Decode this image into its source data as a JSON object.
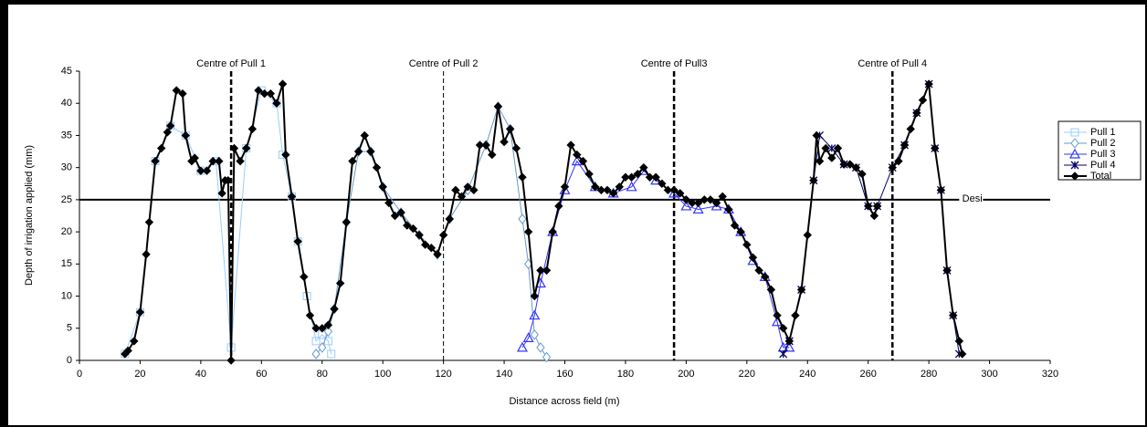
{
  "chart_data": {
    "type": "line",
    "x_label": "Distance across field (m)",
    "y_label": "Depth of irrigation applied (mm)",
    "xlim": [
      0,
      320
    ],
    "xticks": [
      0,
      20,
      40,
      60,
      80,
      100,
      120,
      140,
      160,
      180,
      200,
      220,
      240,
      260,
      280,
      300,
      320
    ],
    "ylim": [
      0,
      45
    ],
    "yticks": [
      0,
      5,
      10,
      15,
      20,
      25,
      30,
      35,
      40,
      45
    ],
    "grid": false,
    "legend": "right",
    "vlines": [
      {
        "x": 50,
        "label": "Centre of Pull 1",
        "style": "thick"
      },
      {
        "x": 120,
        "label": "Centre of Pull 2",
        "style": "thin"
      },
      {
        "x": 196,
        "label": "Centre of Pull3",
        "style": "thick"
      },
      {
        "x": 268,
        "label": "Centre of Pull 4",
        "style": "thick"
      }
    ],
    "hline": {
      "value": 25,
      "label": "Desi"
    },
    "series": [
      {
        "name": "Pull 1",
        "color": "#99ccff",
        "marker": "square",
        "x": [
          15,
          20,
          25,
          30,
          35,
          40,
          45,
          50,
          55,
          60,
          65,
          67,
          70,
          72,
          75,
          78,
          80,
          82,
          83
        ],
        "values": [
          1,
          7.5,
          31,
          36.5,
          35,
          29.5,
          31,
          2,
          33,
          42,
          40,
          32,
          25.5,
          18.5,
          10,
          3,
          4,
          3,
          1
        ]
      },
      {
        "name": "Pull 2",
        "color": "#6699cc",
        "marker": "diamond",
        "x": [
          78,
          80,
          82,
          84,
          88,
          92,
          96,
          100,
          106,
          112,
          118,
          122,
          128,
          134,
          138,
          142,
          146,
          148,
          150,
          152,
          154
        ],
        "values": [
          1,
          2,
          4.5,
          8,
          21.5,
          32.5,
          32.5,
          27,
          23,
          19.5,
          16.5,
          22,
          26.5,
          33.5,
          39.5,
          36,
          22,
          15,
          4,
          2,
          0.5
        ]
      },
      {
        "name": "Pull 3",
        "color": "#3333ff",
        "marker": "triangle",
        "x": [
          146,
          148,
          150,
          152,
          156,
          160,
          164,
          170,
          176,
          182,
          186,
          190,
          196,
          200,
          204,
          210,
          214,
          218,
          222,
          226,
          230,
          232,
          234
        ],
        "values": [
          2,
          3.5,
          7,
          12,
          20,
          26.5,
          31,
          27,
          26,
          27,
          29.5,
          28,
          26,
          24,
          23.5,
          24,
          23.5,
          20,
          15.5,
          13,
          6,
          2,
          2
        ]
      },
      {
        "name": "Pull 4",
        "color": "#000066",
        "marker": "star",
        "x": [
          232,
          234,
          238,
          242,
          244,
          248,
          252,
          256,
          260,
          263,
          268,
          272,
          276,
          280,
          282,
          284,
          286,
          288,
          290
        ],
        "values": [
          1,
          3,
          11,
          28,
          35,
          33,
          30.5,
          30,
          24,
          24,
          30,
          33.5,
          38.5,
          43,
          33,
          26.5,
          14,
          7,
          1
        ]
      },
      {
        "name": "Total",
        "color": "#000000",
        "marker": "dot",
        "x": [
          15,
          16,
          18,
          20,
          22,
          23,
          25,
          27,
          29,
          30,
          32,
          34,
          35,
          37,
          38,
          40,
          42,
          44,
          46,
          47,
          48,
          49,
          50,
          51,
          53,
          55,
          57,
          59,
          61,
          63,
          65,
          67,
          68,
          70,
          72,
          74,
          76,
          78,
          80,
          82,
          84,
          86,
          88,
          90,
          92,
          94,
          96,
          98,
          100,
          102,
          104,
          106,
          108,
          110,
          112,
          114,
          116,
          118,
          120,
          122,
          124,
          126,
          128,
          130,
          132,
          134,
          136,
          138,
          140,
          142,
          144,
          146,
          148,
          150,
          152,
          154,
          156,
          158,
          160,
          162,
          164,
          166,
          168,
          170,
          172,
          174,
          176,
          178,
          180,
          182,
          184,
          186,
          188,
          190,
          192,
          194,
          196,
          198,
          200,
          202,
          204,
          206,
          208,
          210,
          212,
          214,
          216,
          218,
          220,
          222,
          224,
          226,
          228,
          230,
          232,
          234,
          236,
          238,
          240,
          242,
          243,
          244,
          246,
          248,
          250,
          252,
          254,
          256,
          258,
          260,
          262,
          263,
          265,
          268,
          270,
          272,
          274,
          276,
          278,
          280,
          282,
          284,
          286,
          288,
          290,
          291
        ],
        "values": [
          1,
          1.5,
          3,
          7.5,
          16.5,
          21.5,
          31,
          33,
          35.5,
          36.5,
          42,
          41.5,
          35,
          31,
          31.5,
          29.5,
          29.5,
          31,
          31,
          26,
          28,
          28,
          0,
          33,
          31,
          33,
          36,
          42,
          41.5,
          41.5,
          40,
          43,
          32,
          25.5,
          18.5,
          13,
          7,
          5,
          5,
          5.5,
          8,
          12,
          21.5,
          31,
          32.5,
          35,
          32.5,
          30,
          27,
          24.5,
          22.5,
          23,
          21,
          20.5,
          19.5,
          18,
          17.5,
          16.5,
          19.5,
          22,
          26.5,
          25.5,
          27,
          26.5,
          33.5,
          33.5,
          32,
          39.5,
          34,
          36,
          33,
          28.5,
          20,
          10,
          14,
          14,
          20,
          24,
          27,
          33.5,
          32,
          31,
          29,
          27,
          26.5,
          26.5,
          26,
          27,
          28.5,
          28.5,
          29,
          30,
          28.5,
          28.5,
          27.5,
          26.5,
          26.5,
          26,
          25,
          24.5,
          24.5,
          25,
          25,
          24.5,
          25.5,
          23.5,
          21,
          20,
          18,
          16,
          14,
          13,
          11,
          7,
          5,
          3,
          7,
          11,
          19.5,
          28,
          35,
          31,
          33,
          31.5,
          33,
          30.5,
          30.5,
          30,
          29,
          24,
          22.5,
          24,
          null,
          30,
          31,
          33.5,
          36,
          38.5,
          40.5,
          43,
          33,
          26.5,
          14,
          7,
          3,
          1
        ]
      }
    ]
  }
}
